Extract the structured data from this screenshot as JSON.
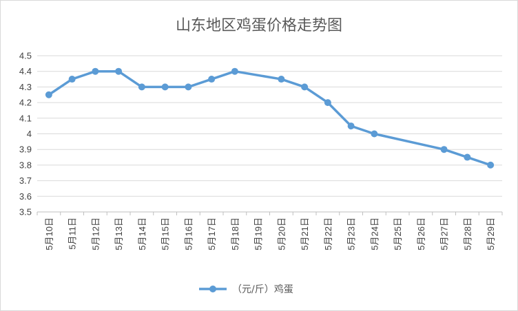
{
  "chart_data": {
    "type": "line",
    "title": "山东地区鸡蛋价格走势图",
    "categories": [
      "5月10日",
      "5月11日",
      "5月12日",
      "5月13日",
      "5月14日",
      "5月15日",
      "5月16日",
      "5月17日",
      "5月18日",
      "5月19日",
      "5月20日",
      "5月21日",
      "5月22日",
      "5月23日",
      "5月24日",
      "5月25日",
      "5月26日",
      "5月27日",
      "5月28日",
      "5月29日"
    ],
    "series": [
      {
        "name": "（元/斤）鸡蛋",
        "values": [
          4.25,
          4.35,
          4.4,
          4.4,
          4.3,
          4.3,
          4.3,
          4.35,
          4.4,
          null,
          4.35,
          4.3,
          4.2,
          4.05,
          4.0,
          null,
          null,
          3.9,
          3.85,
          3.8
        ],
        "color": "#5b9bd5"
      }
    ],
    "ylim": [
      3.5,
      4.5
    ],
    "yticks": [
      "3.5",
      "3.6",
      "3.7",
      "3.8",
      "3.9",
      "4",
      "4.1",
      "4.2",
      "4.3",
      "4.4",
      "4.5"
    ],
    "grid": true,
    "gap_handling": "connect",
    "legend_position": "bottom"
  }
}
